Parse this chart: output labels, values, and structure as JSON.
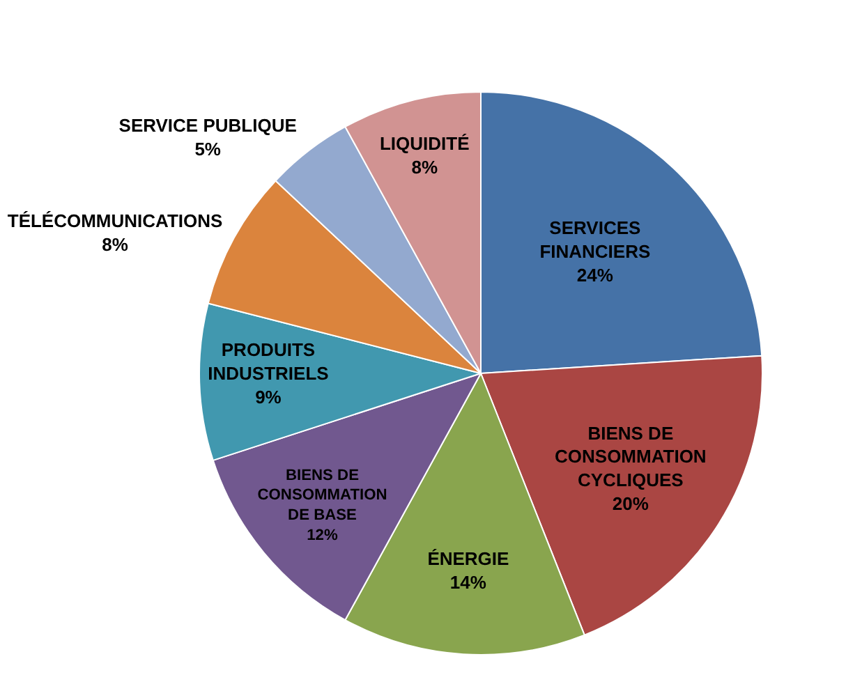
{
  "chart_data": {
    "type": "pie",
    "categories": [
      "SERVICES\nFINANCIERS",
      "BIENS DE\nCONSOMMATION\nCYCLIQUES",
      "ÉNERGIE",
      "BIENS DE\nCONSOMMATION\nDE BASE",
      "PRODUITS\nINDUSTRIELS",
      "TÉLÉCOMMUNICATIONS",
      "SERVICE PUBLIQUE",
      "LIQUIDITÉ"
    ],
    "values": [
      24,
      20,
      14,
      12,
      9,
      8,
      5,
      8
    ],
    "value_labels": [
      "24%",
      "20%",
      "14%",
      "12%",
      "9%",
      "8%",
      "5%",
      "8%"
    ],
    "colors": [
      "#4572a7",
      "#aa4643",
      "#89a54e",
      "#71588f",
      "#4198af",
      "#db843d",
      "#93a9cf",
      "#d19392"
    ],
    "legend": false
  }
}
